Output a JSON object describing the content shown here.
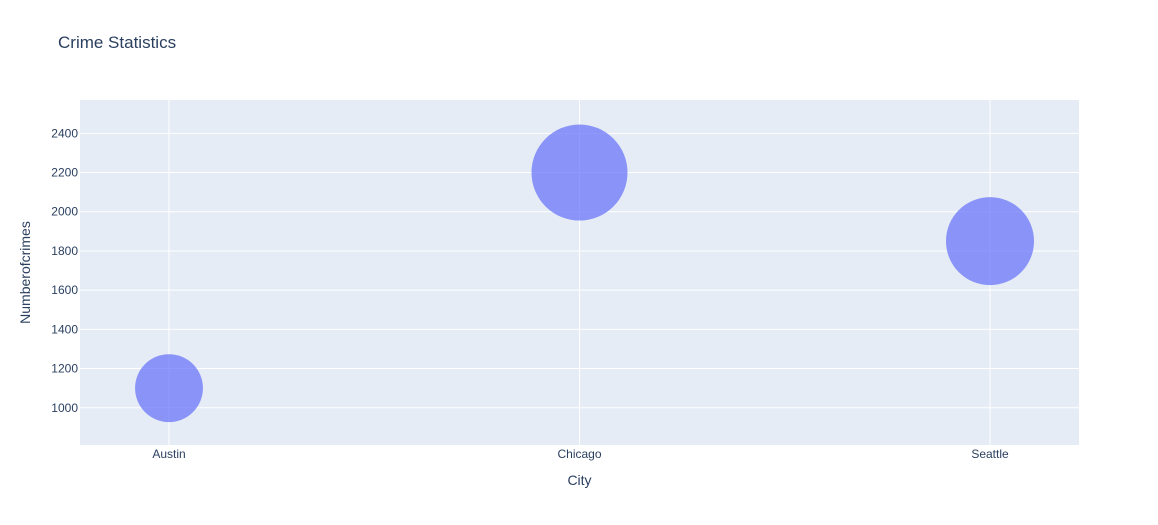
{
  "chart_data": {
    "type": "scatter",
    "title": "Crime Statistics",
    "xlabel": "City",
    "ylabel": "Numberofcrimes",
    "categories": [
      "Austin",
      "Chicago",
      "Seattle"
    ],
    "values": [
      1100,
      2200,
      1850
    ],
    "yticks": [
      1000,
      1200,
      1400,
      1600,
      1800,
      2000,
      2200,
      2400
    ],
    "ylim": [
      810,
      2570
    ],
    "grid": true,
    "legend": "none",
    "marker_color": "#636efa",
    "plot_background": "#e5ecf6",
    "grid_color": "#ffffff",
    "text_color": "#2a3f5f"
  }
}
